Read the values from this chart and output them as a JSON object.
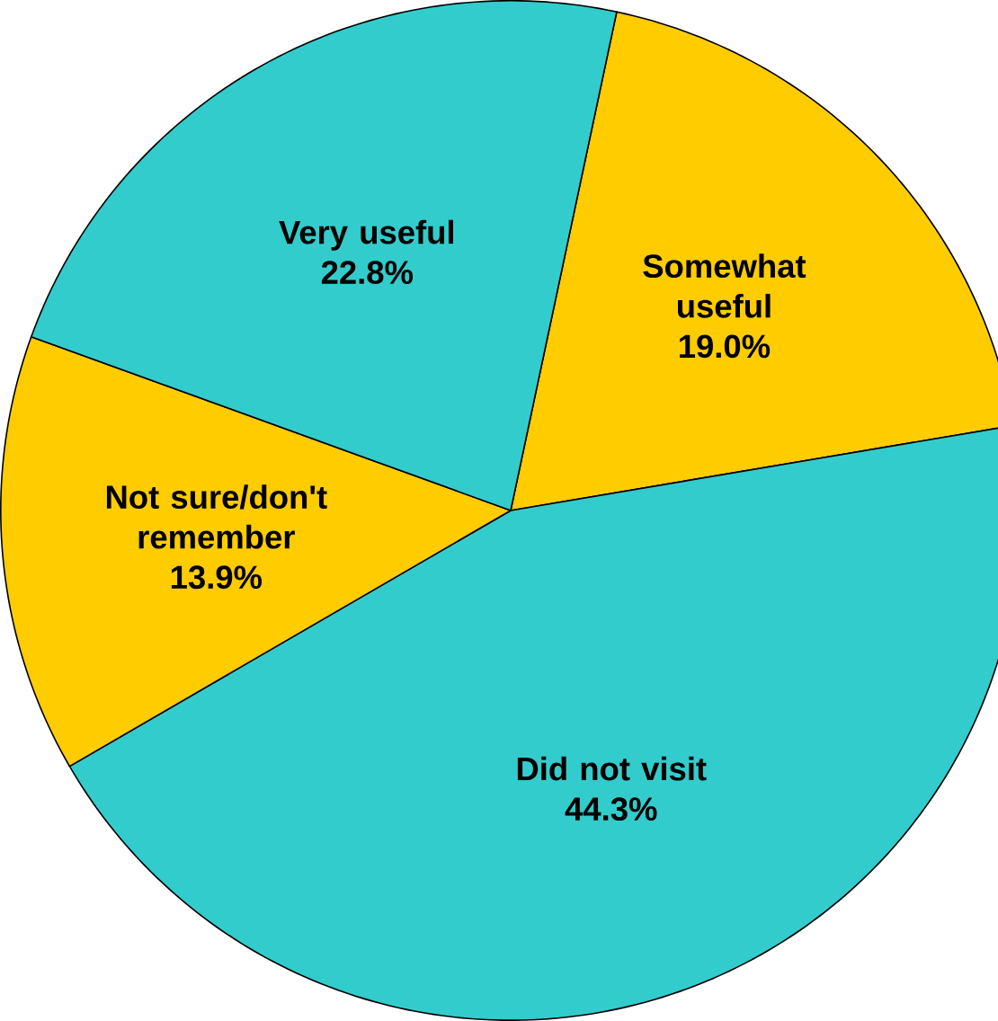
{
  "chart_data": {
    "type": "pie",
    "categories": [
      "Somewhat useful",
      "Did not visit",
      "Not sure/don't remember",
      "Very useful"
    ],
    "values": [
      19.0,
      44.3,
      13.9,
      22.8
    ],
    "value_labels": [
      "19.0%",
      "44.3%",
      "13.9%",
      "22.8%"
    ],
    "colors": [
      "#ffcc00",
      "#33cccc",
      "#ffcc00",
      "#33cccc"
    ]
  }
}
